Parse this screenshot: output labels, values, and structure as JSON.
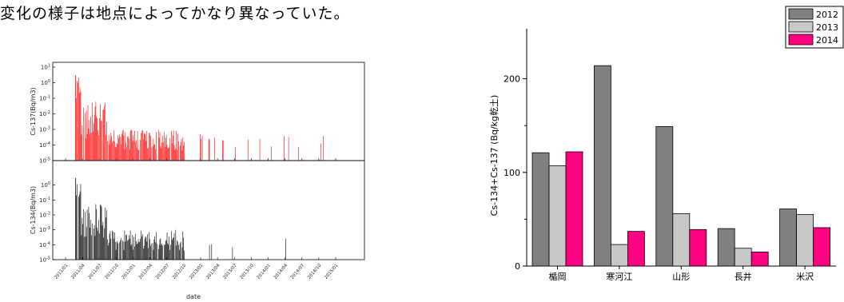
{
  "intro_text": "変化の様子は地点によってかなり異なっていた。",
  "chart_data": [
    {
      "type": "bar",
      "title": "Cs-137(Bq/m³)",
      "ylabel": "Cs-137(Bq/m3)",
      "xlabel": "date",
      "y_scale": "log",
      "ylim": [
        1e-05,
        10
      ],
      "y_ticks": [
        "10-5",
        "10-4",
        "10-3",
        "10-2",
        "10-1",
        "100",
        "101"
      ],
      "x_ticks": [
        "2011/01",
        "2011/04",
        "2011/07",
        "2011/10",
        "2012/01",
        "2012/04",
        "2012/07",
        "2012/10",
        "2013/01",
        "2013/04",
        "2013/07",
        "2013/10",
        "2014/01",
        "2014/04",
        "2014/07",
        "2014/10",
        "2015/01"
      ],
      "series_color": "#ff0000"
    },
    {
      "type": "bar",
      "title": "Cs-134(Bq/m³)",
      "ylabel": "Cs-134(Bq/m3)",
      "xlabel": "date",
      "y_scale": "log",
      "ylim": [
        1e-05,
        10
      ],
      "y_ticks": [
        "10-5",
        "10-4",
        "10-3",
        "10-2",
        "10-1",
        "100"
      ],
      "x_ticks": [
        "2011/01",
        "2011/04",
        "2011/07",
        "2011/10",
        "2012/01",
        "2012/04",
        "2012/07",
        "2012/10",
        "2013/01",
        "2013/04",
        "2013/07",
        "2013/10",
        "2014/01",
        "2014/04",
        "2014/07",
        "2014/10",
        "2015/01"
      ],
      "series_color": "#000000"
    },
    {
      "type": "bar",
      "categories": [
        "楯岡",
        "寒河江",
        "山形",
        "長井",
        "米沢"
      ],
      "series": [
        {
          "name": "2012",
          "values": [
            121,
            214,
            149,
            40,
            61
          ],
          "color": "#808080"
        },
        {
          "name": "2013",
          "values": [
            107,
            23,
            56,
            19,
            55
          ],
          "color": "#c8c8c8"
        },
        {
          "name": "2014",
          "values": [
            122,
            37,
            39,
            15,
            41
          ],
          "color": "#ff0080"
        }
      ],
      "ylabel": "Cs-134+Cs-137 (Bq/kg乾土)",
      "ylim": [
        0,
        250
      ],
      "y_ticks": [
        0,
        100,
        200
      ],
      "legend_placement": "top-right"
    }
  ]
}
